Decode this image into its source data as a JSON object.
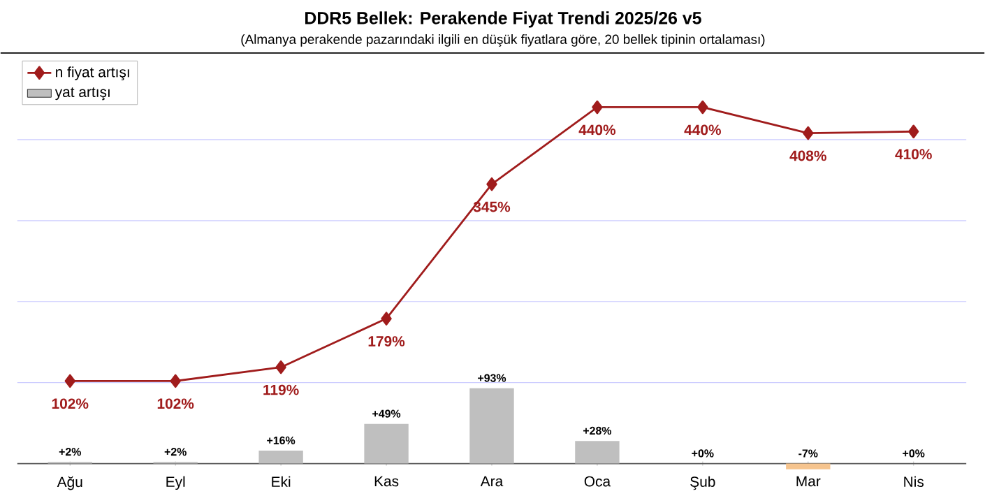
{
  "chart_data": {
    "type": "bar",
    "title": "DDR5 Bellek: Perakende Fiyat Trendi 2025/26 v5",
    "subtitle": "(Almanya perakende pazarındaki ilgili en düşük fiyatlara göre, 20 bellek tipinin ortalaması)",
    "categories": [
      "Ağu",
      "Eyl",
      "Eki",
      "Kas",
      "Ara",
      "Oca",
      "Şub",
      "Mar",
      "Nis"
    ],
    "series": [
      {
        "name": "n fiyat artışı",
        "type": "line",
        "color": "#a01c1c",
        "marker": "diamond",
        "line_style": "solid",
        "values": [
          102,
          102,
          119,
          179,
          345,
          440,
          440,
          408,
          410
        ],
        "value_labels": [
          "102%",
          "102%",
          "119%",
          "179%",
          "345%",
          "440%",
          "440%",
          "408%",
          "410%"
        ]
      },
      {
        "name": "yat artışı",
        "color": "#bfbfbf",
        "colors": [
          "#bfbfbf",
          "#bfbfbf",
          "#bfbfbf",
          "#bfbfbf",
          "#bfbfbf",
          "#bfbfbf",
          "#bfbfbf",
          "#f6c48e",
          "#bfbfbf"
        ],
        "values": [
          2,
          2,
          16,
          49,
          93,
          28,
          0,
          -7,
          0
        ],
        "value_labels": [
          "+2%",
          "+2%",
          "+16%",
          "+49%",
          "+93%",
          "+28%",
          "+0%",
          "-7%",
          "+0%"
        ]
      }
    ],
    "ylim": [
      -10,
      500
    ],
    "yticks": [
      {
        "value": 100,
        "label": null
      },
      {
        "value": 200,
        "label": null
      },
      {
        "value": 300,
        "label": null
      },
      {
        "value": 400,
        "label": null
      }
    ],
    "grid": "y",
    "tick_labels": "x",
    "legend": "top left"
  }
}
